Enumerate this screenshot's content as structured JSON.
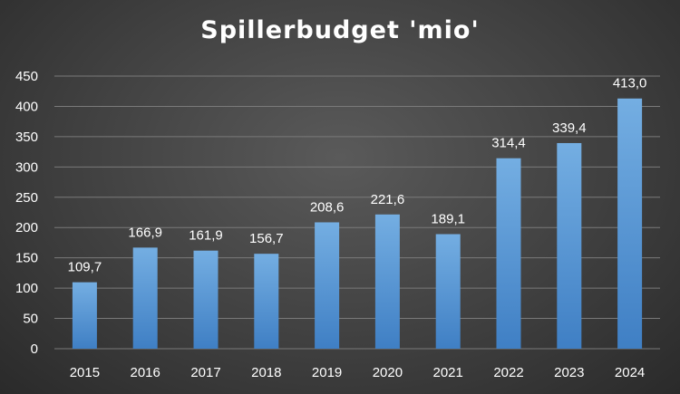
{
  "chart_data": {
    "type": "bar",
    "title": "Spillerbudget 'mio'",
    "categories": [
      "2015",
      "2016",
      "2017",
      "2018",
      "2019",
      "2020",
      "2021",
      "2022",
      "2023",
      "2024"
    ],
    "values": [
      109.7,
      166.9,
      161.9,
      156.7,
      208.6,
      221.6,
      189.1,
      314.4,
      339.4,
      413.0
    ],
    "data_labels": [
      "109,7",
      "166,9",
      "161,9",
      "156,7",
      "208,6",
      "221,6",
      "189,1",
      "314,4",
      "339,4",
      "413,0"
    ],
    "y_ticks": [
      0,
      50,
      100,
      150,
      200,
      250,
      300,
      350,
      400,
      450
    ],
    "ylim": [
      0,
      450
    ],
    "xlabel": "",
    "ylabel": "",
    "grid": true,
    "legend": "none",
    "colors": {
      "bar_top": "#74aee2",
      "bar_bottom": "#3f7fc4",
      "grid": "#7a7a7a",
      "text": "#ffffff"
    }
  }
}
